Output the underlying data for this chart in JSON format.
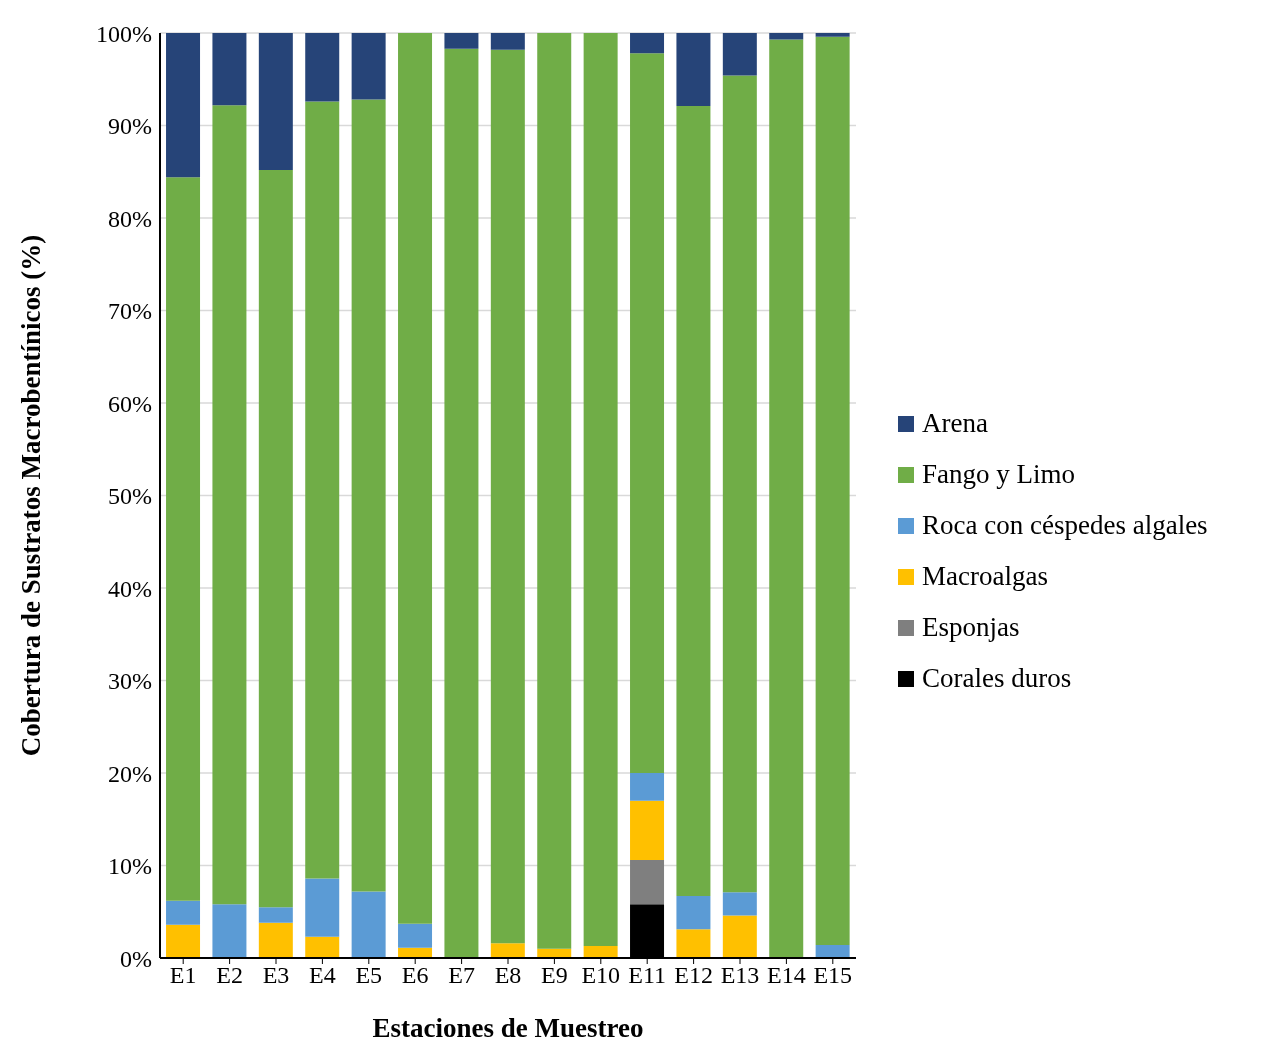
{
  "chart_data": {
    "type": "bar",
    "stacked": true,
    "xlabel": "Estaciones de Muestreo",
    "ylabel": "Cobertura de Sustratos Macrobentínicos (%)",
    "categories": [
      "E1",
      "E2",
      "E3",
      "E4",
      "E5",
      "E6",
      "E7",
      "E8",
      "E9",
      "E10",
      "E11",
      "E12",
      "E13",
      "E14",
      "E15"
    ],
    "series": [
      {
        "name": "Corales duros",
        "color": "#000000",
        "values": [
          0,
          0,
          0,
          0,
          0,
          0,
          0,
          0,
          0,
          0,
          5.8,
          0,
          0,
          0,
          0
        ]
      },
      {
        "name": "Esponjas",
        "color": "#7f7f7f",
        "values": [
          0,
          0,
          0,
          0,
          0,
          0,
          0,
          0,
          0,
          0,
          4.8,
          0,
          0,
          0,
          0
        ]
      },
      {
        "name": "Macroalgas",
        "color": "#ffc000",
        "values": [
          3.6,
          0,
          3.8,
          2.3,
          0,
          1.1,
          0,
          1.6,
          1.0,
          1.3,
          6.4,
          3.1,
          4.6,
          0,
          0
        ]
      },
      {
        "name": "Roca con céspedes algales",
        "color": "#5b9bd5",
        "values": [
          2.6,
          5.8,
          1.7,
          6.3,
          7.2,
          2.6,
          0,
          0,
          0,
          0,
          3.0,
          3.6,
          2.5,
          0,
          1.4
        ]
      },
      {
        "name": "Fango y Limo",
        "color": "#70ad47",
        "values": [
          78.2,
          86.4,
          79.7,
          84.0,
          85.6,
          96.3,
          98.3,
          96.6,
          99.0,
          98.7,
          77.8,
          85.4,
          88.3,
          99.3,
          98.2
        ]
      },
      {
        "name": "Arena",
        "color": "#264478",
        "values": [
          15.6,
          7.8,
          14.8,
          7.4,
          7.2,
          0,
          1.7,
          1.8,
          0,
          0,
          2.3,
          7.9,
          4.6,
          0.7,
          0.4
        ]
      }
    ],
    "ylim": [
      0,
      100
    ],
    "yticks": [
      {
        "value": 0,
        "label": "0%"
      },
      {
        "value": 10,
        "label": "10%"
      },
      {
        "value": 20,
        "label": "20%"
      },
      {
        "value": 30,
        "label": "30%"
      },
      {
        "value": 40,
        "label": "40%"
      },
      {
        "value": 50,
        "label": "50%"
      },
      {
        "value": 60,
        "label": "60%"
      },
      {
        "value": 70,
        "label": "70%"
      },
      {
        "value": 80,
        "label": "80%"
      },
      {
        "value": 90,
        "label": "90%"
      },
      {
        "value": 100,
        "label": "100%"
      }
    ],
    "grid": "y",
    "legend": "right"
  }
}
